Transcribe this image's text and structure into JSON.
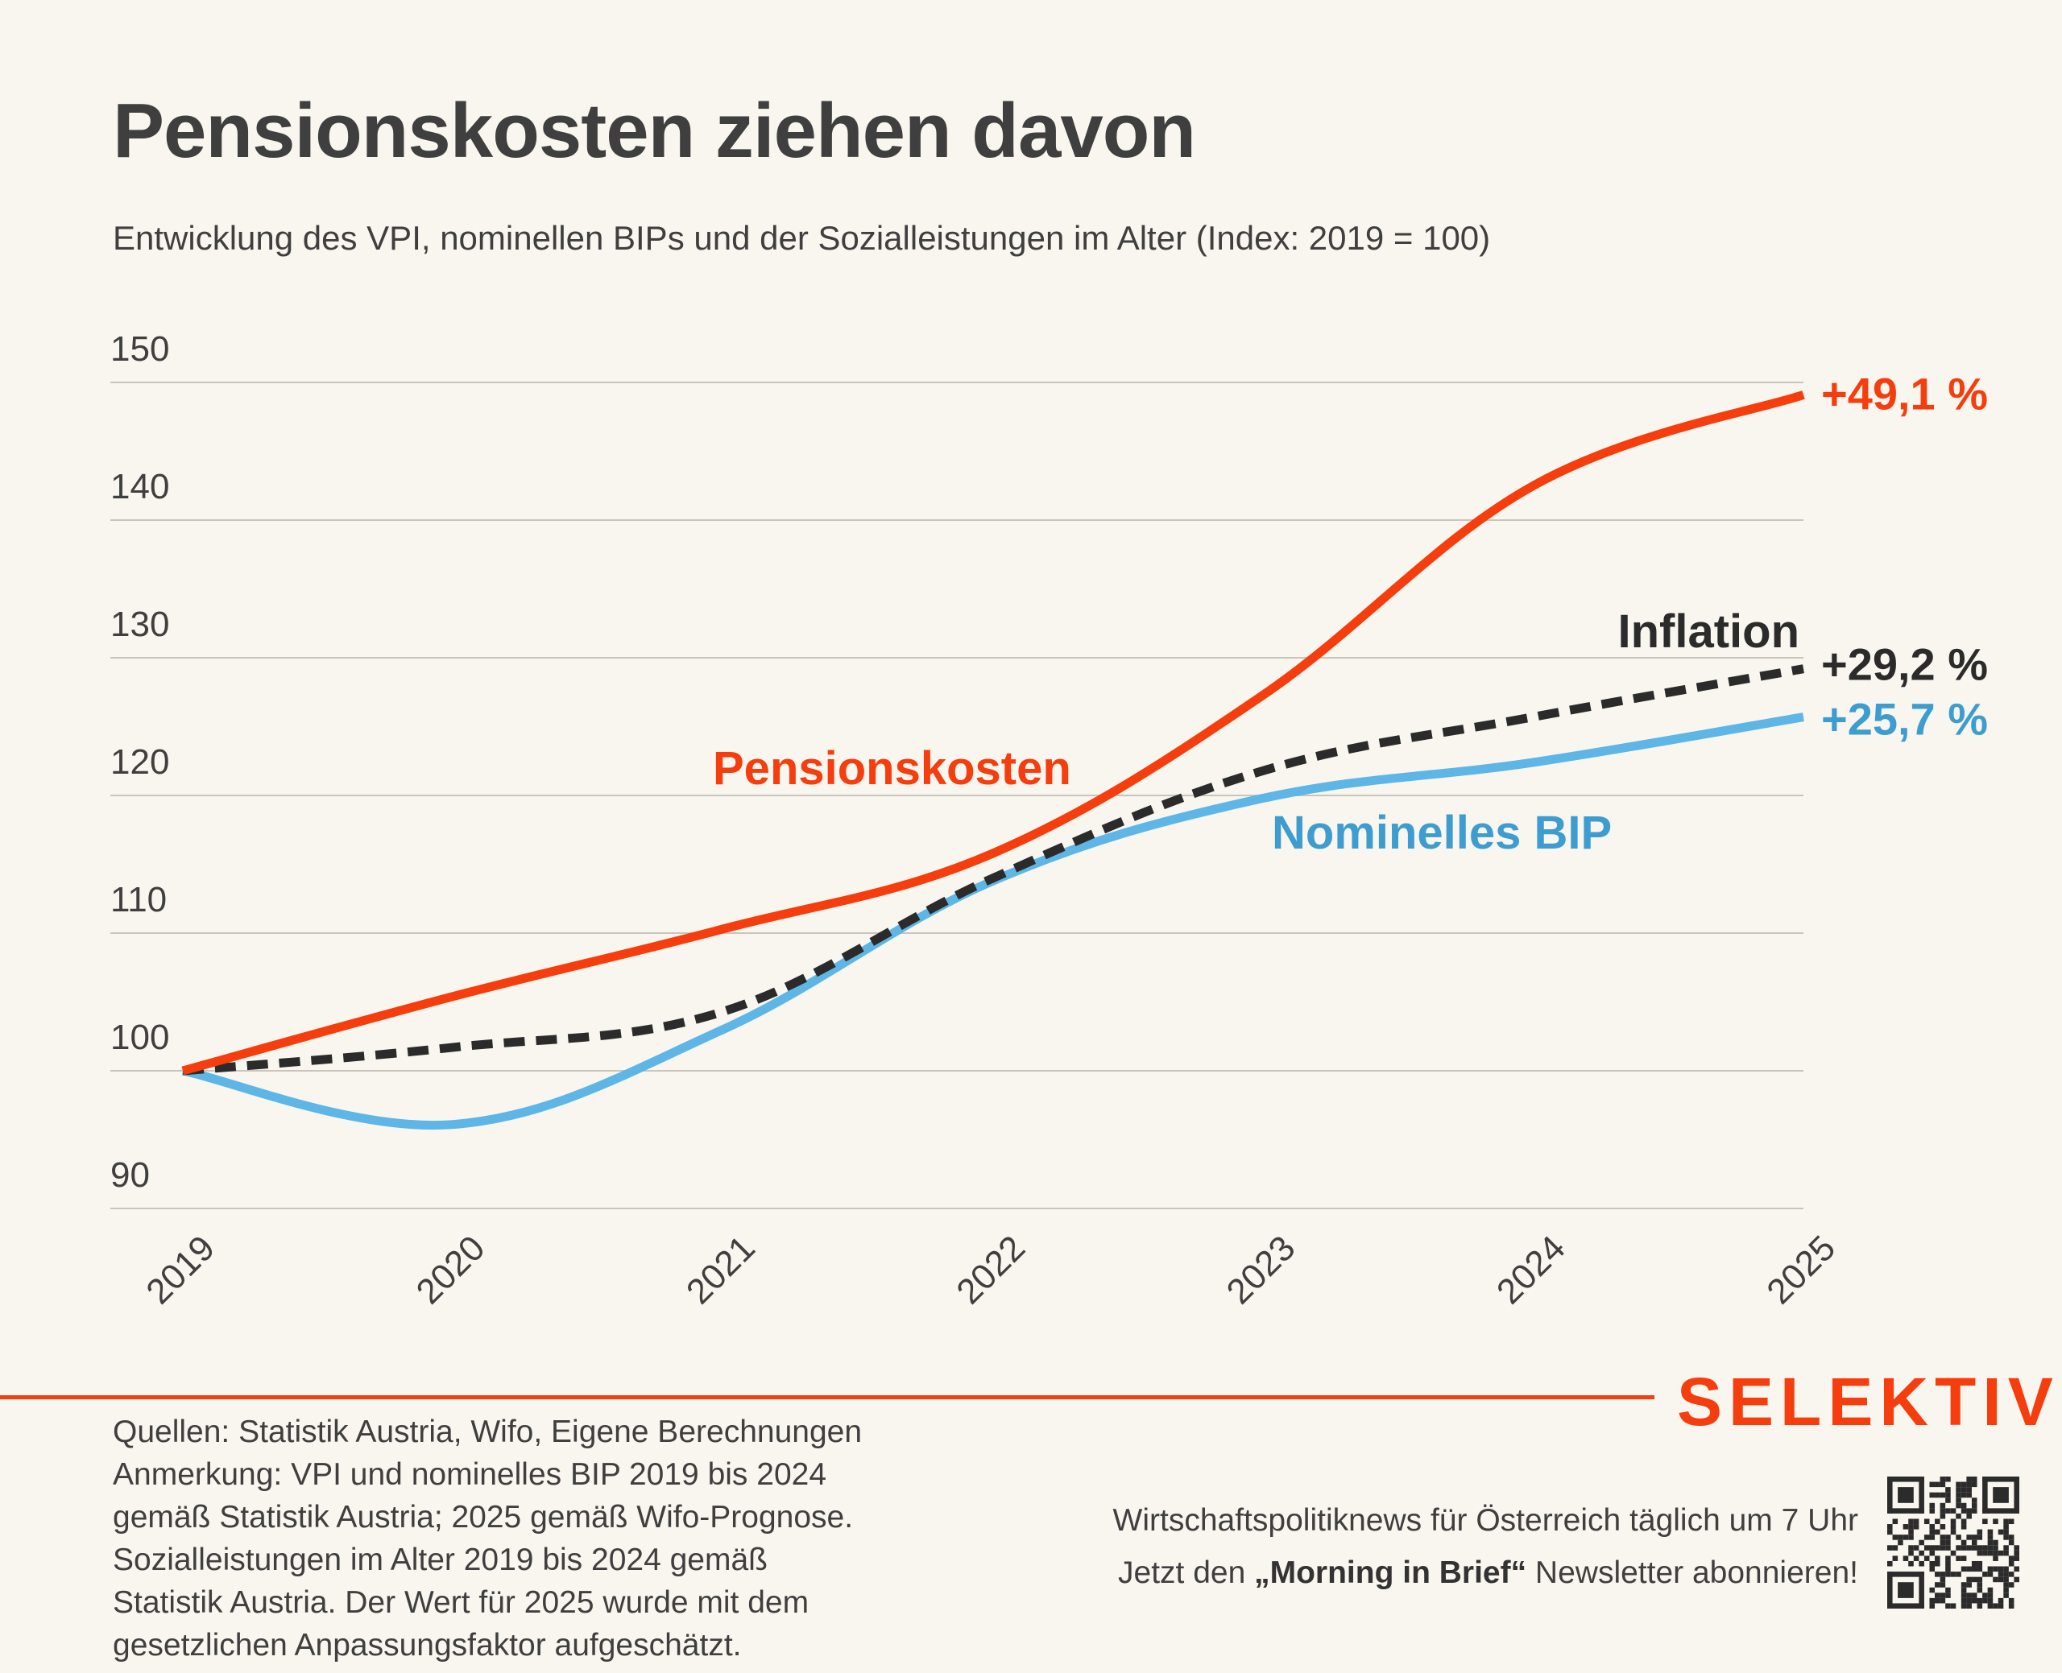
{
  "header": {
    "title": "Pensionskosten ziehen davon",
    "subtitle": "Entwicklung des VPI, nominellen BIPs und der Sozialleistungen im Alter (Index: 2019 = 100)"
  },
  "colors": {
    "background": "#F9F6EF",
    "pensions": "#F53D0E",
    "inflation": "#2B2B2B",
    "gdp_line": "#5DB6E6",
    "gdp_label": "#3E9DD0",
    "grid": "#C9C5BC",
    "text": "#3F3F3F",
    "brand": "#F53D0E"
  },
  "chart_data": {
    "type": "line",
    "title": "Pensionskosten ziehen davon",
    "subtitle": "Entwicklung des VPI, nominellen BIPs und der Sozialleistungen im Alter (Index: 2019 = 100)",
    "xlabel": "",
    "ylabel": "",
    "x": [
      "2019",
      "2020",
      "2021",
      "2022",
      "2023",
      "2024",
      "2025"
    ],
    "ylim": [
      90,
      150
    ],
    "yticks": [
      90,
      100,
      110,
      120,
      130,
      140,
      150
    ],
    "grid": true,
    "series": [
      {
        "name": "Pensionskosten",
        "style": "solid",
        "values": [
          100,
          105.4,
          110.3,
          115.8,
          127.3,
          142.5,
          149.1
        ],
        "end_label": "+49,1 %"
      },
      {
        "name": "Inflation",
        "style": "dashed",
        "values": [
          100,
          101.7,
          104.3,
          114.0,
          121.8,
          125.7,
          129.2
        ],
        "end_label": "+29,2 %"
      },
      {
        "name": "Nominelles BIP",
        "style": "solid",
        "values": [
          100,
          96.1,
          103.0,
          113.8,
          119.8,
          122.4,
          125.7
        ],
        "end_label": "+25,7 %"
      }
    ]
  },
  "footer": {
    "brand": "SELEKTIV",
    "notes": [
      "Quellen: Statistik Austria, Wifo, Eigene Berechnungen",
      "Anmerkung: VPI und nominelles BIP 2019 bis 2024",
      "gemäß Statistik Austria; 2025 gemäß Wifo-Prognose.",
      "Sozialleistungen im Alter 2019 bis 2024 gemäß",
      "Statistik Austria. Der Wert für 2025 wurde mit dem",
      "gesetzlichen Anpassungsfaktor aufgeschätzt."
    ],
    "promo_line1": "Wirtschaftspolitiknews für Österreich täglich um 7 Uhr",
    "promo_line2_prefix": "Jetzt den ",
    "promo_line2_bold": "„Morning in Brief“",
    "promo_line2_suffix": " Newsletter abonnieren!",
    "qr_icon": "qr-code-icon"
  }
}
